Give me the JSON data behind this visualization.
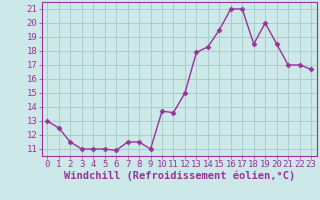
{
  "x": [
    0,
    1,
    2,
    3,
    4,
    5,
    6,
    7,
    8,
    9,
    10,
    11,
    12,
    13,
    14,
    15,
    16,
    17,
    18,
    19,
    20,
    21,
    22,
    23
  ],
  "y": [
    13.0,
    12.5,
    11.5,
    11.0,
    11.0,
    11.0,
    10.9,
    11.5,
    11.5,
    11.0,
    13.7,
    13.6,
    15.0,
    17.9,
    18.3,
    19.5,
    21.0,
    21.0,
    18.5,
    20.0,
    18.5,
    17.0,
    17.0,
    16.7
  ],
  "line_color": "#993399",
  "marker": "D",
  "marker_size": 2.5,
  "bg_color": "#cce8e8",
  "grid_color": "#aacccc",
  "xlabel": "Windchill (Refroidissement éolien,°C)",
  "ylabel": "",
  "ylim": [
    10.5,
    21.5
  ],
  "xlim": [
    -0.5,
    23.5
  ],
  "yticks": [
    11,
    12,
    13,
    14,
    15,
    16,
    17,
    18,
    19,
    20,
    21
  ],
  "xticks": [
    0,
    1,
    2,
    3,
    4,
    5,
    6,
    7,
    8,
    9,
    10,
    11,
    12,
    13,
    14,
    15,
    16,
    17,
    18,
    19,
    20,
    21,
    22,
    23
  ],
  "font_color": "#993399",
  "tick_fontsize": 6.5,
  "xlabel_fontsize": 7.5,
  "linewidth": 1.0
}
